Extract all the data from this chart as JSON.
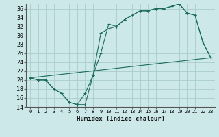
{
  "xlabel": "Humidex (Indice chaleur)",
  "bg_color": "#cce8e8",
  "grid_color": "#aacccc",
  "line_color": "#1a6b5a",
  "xlim": [
    -0.5,
    23.5
  ],
  "ylim": [
    14,
    37
  ],
  "xticks": [
    0,
    1,
    2,
    3,
    4,
    5,
    6,
    7,
    8,
    9,
    10,
    11,
    12,
    13,
    14,
    15,
    16,
    17,
    18,
    19,
    20,
    21,
    22,
    23
  ],
  "yticks": [
    14,
    16,
    18,
    20,
    22,
    24,
    26,
    28,
    30,
    32,
    34,
    36
  ],
  "line1_x": [
    0,
    1,
    2,
    3,
    4,
    5,
    6,
    7,
    8,
    9,
    10,
    11,
    12,
    13,
    14,
    15,
    16,
    17,
    18,
    19,
    20,
    21,
    22,
    23
  ],
  "line1_y": [
    20.5,
    20.0,
    20.0,
    18.0,
    17.0,
    15.0,
    14.5,
    17.0,
    21.0,
    26.0,
    32.5,
    32.0,
    33.5,
    34.5,
    35.5,
    35.5,
    36.0,
    36.0,
    36.5,
    37.0,
    35.0,
    34.5,
    28.5,
    25.0
  ],
  "line2_x": [
    0,
    1,
    2,
    3,
    4,
    5,
    6,
    7,
    8,
    9,
    10,
    11,
    12,
    13,
    14,
    15,
    16,
    17,
    18,
    19,
    20,
    21,
    22,
    23
  ],
  "line2_y": [
    20.5,
    20.0,
    20.0,
    18.0,
    17.0,
    15.0,
    14.5,
    14.5,
    21.0,
    30.5,
    31.5,
    32.0,
    33.5,
    34.5,
    35.5,
    35.5,
    36.0,
    36.0,
    36.5,
    37.0,
    35.0,
    34.5,
    28.5,
    25.0
  ],
  "line3_x": [
    0,
    23
  ],
  "line3_y": [
    20.5,
    25.0
  ]
}
